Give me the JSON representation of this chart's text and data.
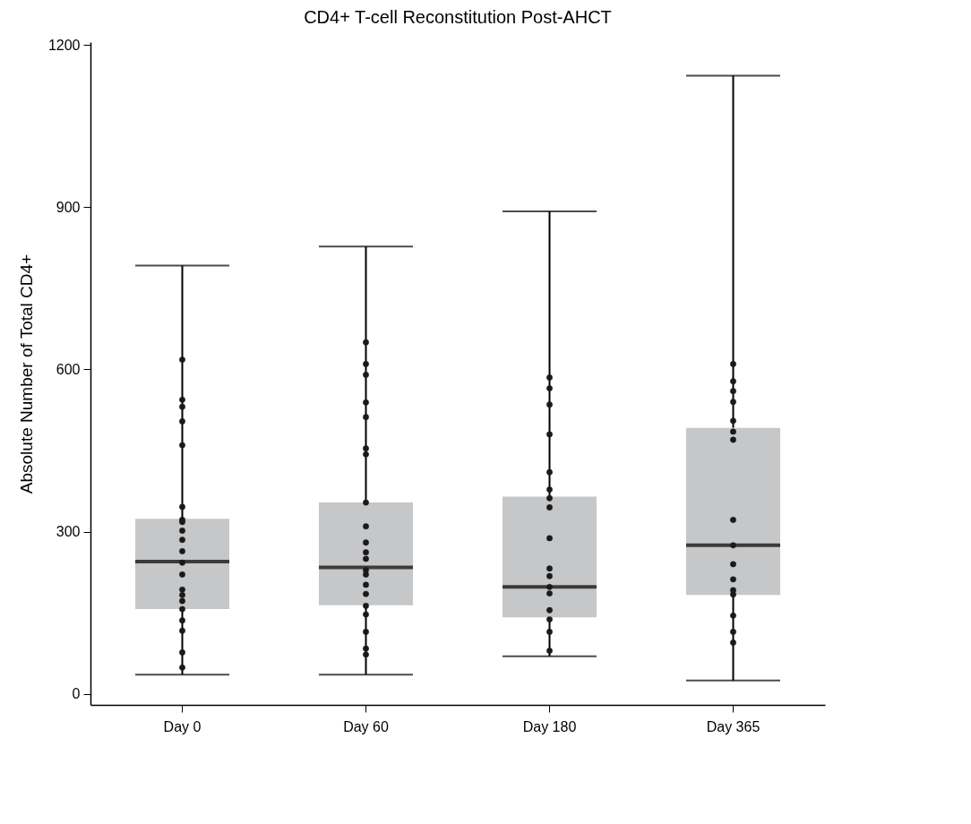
{
  "chart_data": {
    "type": "box",
    "title": "CD4+ T-cell Reconstitution Post-AHCT",
    "ylabel": "Absolute Number of Total CD4+",
    "categories": [
      "Day 0",
      "Day 60",
      "Day 180",
      "Day 365"
    ],
    "ylim": [
      -20,
      1205
    ],
    "yticks": [
      0,
      300,
      600,
      900,
      1200
    ],
    "grid": false,
    "marker": "circle",
    "series": [
      {
        "color": "#c6c7c9",
        "boxes": [
          {
            "low": 36,
            "q1": 157,
            "median": 245,
            "q3": 324,
            "high": 792
          },
          {
            "low": 36,
            "q1": 164,
            "median": 234,
            "q3": 354,
            "high": 827
          },
          {
            "low": 70,
            "q1": 142,
            "median": 198,
            "q3": 365,
            "high": 892
          },
          {
            "low": 25,
            "q1": 183,
            "median": 275,
            "q3": 492,
            "high": 1143
          }
        ]
      },
      {
        "type": "scatter",
        "color": "#1a1a1a",
        "x": [
          "Day 0",
          "Day 0",
          "Day 0",
          "Day 0",
          "Day 0",
          "Day 0",
          "Day 0",
          "Day 0",
          "Day 0",
          "Day 0",
          "Day 0",
          "Day 0",
          "Day 0",
          "Day 0",
          "Day 0",
          "Day 0",
          "Day 0",
          "Day 0",
          "Day 0",
          "Day 0",
          "Day 0",
          "Day 60",
          "Day 60",
          "Day 60",
          "Day 60",
          "Day 60",
          "Day 60",
          "Day 60",
          "Day 60",
          "Day 60",
          "Day 60",
          "Day 60",
          "Day 60",
          "Day 60",
          "Day 60",
          "Day 60",
          "Day 60",
          "Day 60",
          "Day 60",
          "Day 60",
          "Day 60",
          "Day 60",
          "Day 180",
          "Day 180",
          "Day 180",
          "Day 180",
          "Day 180",
          "Day 180",
          "Day 180",
          "Day 180",
          "Day 180",
          "Day 180",
          "Day 180",
          "Day 180",
          "Day 180",
          "Day 180",
          "Day 180",
          "Day 180",
          "Day 180",
          "Day 365",
          "Day 365",
          "Day 365",
          "Day 365",
          "Day 365",
          "Day 365",
          "Day 365",
          "Day 365",
          "Day 365",
          "Day 365",
          "Day 365",
          "Day 365",
          "Day 365",
          "Day 365",
          "Day 365",
          "Day 365"
        ],
        "values": [
          618,
          544,
          531,
          504,
          460,
          346,
          322,
          318,
          302,
          285,
          264,
          243,
          221,
          193,
          183,
          172,
          157,
          136,
          117,
          77,
          49,
          650,
          610,
          590,
          539,
          512,
          454,
          443,
          354,
          310,
          280,
          262,
          250,
          229,
          221,
          202,
          185,
          163,
          147,
          115,
          84,
          73,
          585,
          565,
          535,
          480,
          410,
          378,
          362,
          345,
          288,
          232,
          218,
          198,
          186,
          155,
          138,
          115,
          80,
          610,
          578,
          560,
          540,
          505,
          485,
          470,
          322,
          275,
          240,
          212,
          192,
          184,
          145,
          115,
          95
        ]
      }
    ]
  }
}
